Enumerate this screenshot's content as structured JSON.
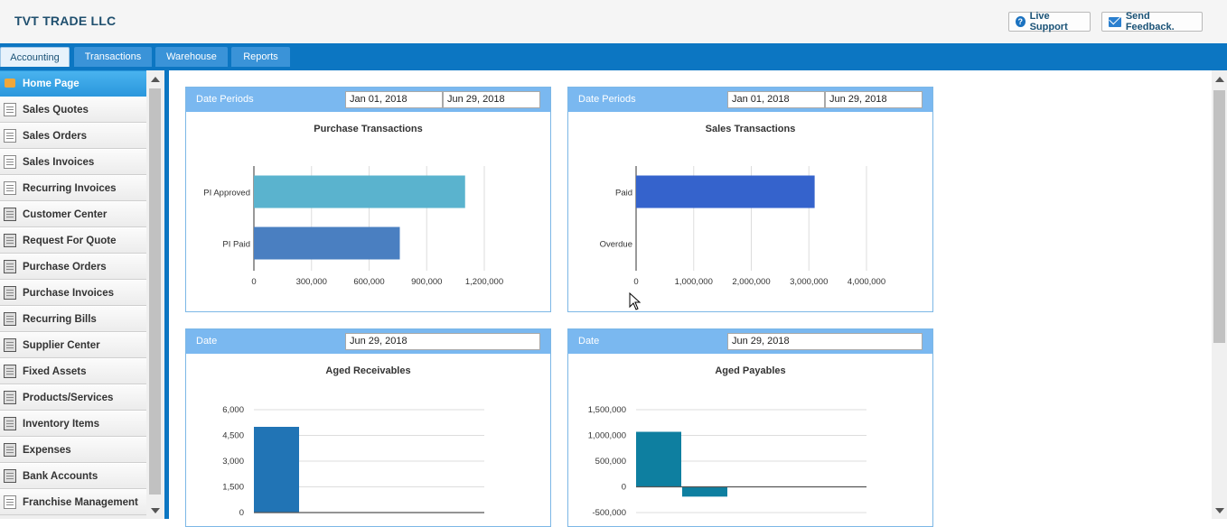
{
  "header": {
    "company": "TVT TRADE LLC",
    "live_support": "Live Support",
    "send_feedback": "Send Feedback."
  },
  "tabs": [
    {
      "label": "Accounting",
      "active": true
    },
    {
      "label": "Transactions"
    },
    {
      "label": "Warehouse"
    },
    {
      "label": "Reports"
    }
  ],
  "sidebar": {
    "items": [
      {
        "label": "Home Page",
        "icon": "home-icon",
        "active": true
      },
      {
        "label": "Sales Quotes",
        "icon": "document-icon"
      },
      {
        "label": "Sales Orders",
        "icon": "document-icon"
      },
      {
        "label": "Sales Invoices",
        "icon": "document-icon"
      },
      {
        "label": "Recurring Invoices",
        "icon": "document-icon"
      },
      {
        "label": "Customer Center",
        "icon": "customer-icon"
      },
      {
        "label": "Request For Quote",
        "icon": "truck-icon"
      },
      {
        "label": "Purchase Orders",
        "icon": "truck-icon"
      },
      {
        "label": "Purchase Invoices",
        "icon": "truck-icon"
      },
      {
        "label": "Recurring Bills",
        "icon": "truck-icon"
      },
      {
        "label": "Supplier Center",
        "icon": "supplier-icon"
      },
      {
        "label": "Fixed Assets",
        "icon": "asset-icon"
      },
      {
        "label": "Products/Services",
        "icon": "truck-icon"
      },
      {
        "label": "Inventory Items",
        "icon": "truck-icon"
      },
      {
        "label": "Expenses",
        "icon": "calculator-icon"
      },
      {
        "label": "Bank Accounts",
        "icon": "bank-icon"
      },
      {
        "label": "Franchise Management",
        "icon": "document-icon"
      }
    ]
  },
  "panels": {
    "purchase": {
      "head_label": "Date Periods",
      "from": "Jan 01, 2018",
      "to": "Jun 29, 2018",
      "title": "Purchase Transactions"
    },
    "sales": {
      "head_label": "Date Periods",
      "from": "Jan 01, 2018",
      "to": "Jun 29, 2018",
      "title": "Sales Transactions"
    },
    "receivables": {
      "head_label": "Date",
      "date": "Jun 29, 2018",
      "title": "Aged Receivables"
    },
    "payables": {
      "head_label": "Date",
      "date": "Jun 29, 2018",
      "title": "Aged Payables"
    }
  },
  "chart_data": [
    {
      "type": "bar",
      "orientation": "horizontal",
      "title": "Purchase Transactions",
      "categories": [
        "PI Approved",
        "PI Paid"
      ],
      "values": [
        1100000,
        760000
      ],
      "colors": [
        "#5ab3ce",
        "#4a7fc1"
      ],
      "xticks": [
        "0",
        "300,000",
        "600,000",
        "900,000",
        "1,200,000"
      ],
      "xlim": [
        0,
        1200000
      ],
      "grid": true
    },
    {
      "type": "bar",
      "orientation": "horizontal",
      "title": "Sales Transactions",
      "categories": [
        "Paid",
        "Overdue"
      ],
      "values": [
        3100000,
        0
      ],
      "colors": [
        "#3563cc",
        "#3563cc"
      ],
      "xticks": [
        "0",
        "1,000,000",
        "2,000,000",
        "3,000,000",
        "4,000,000"
      ],
      "xlim": [
        0,
        4000000
      ],
      "grid": true
    },
    {
      "type": "bar",
      "title": "Aged Receivables",
      "values": [
        5000
      ],
      "colors": [
        "#2174b5"
      ],
      "yticks": [
        "6,000",
        "4,500",
        "3,000",
        "1,500",
        "0"
      ],
      "ylim": [
        0,
        6000
      ],
      "grid": true
    },
    {
      "type": "bar",
      "title": "Aged Payables",
      "values": [
        1070000,
        -190000
      ],
      "colors": [
        "#0e7fa0",
        "#0e7fa0"
      ],
      "yticks": [
        "1,500,000",
        "1,000,000",
        "500,000",
        "0",
        "-500,000"
      ],
      "ylim": [
        -500000,
        1500000
      ],
      "grid": true
    }
  ]
}
